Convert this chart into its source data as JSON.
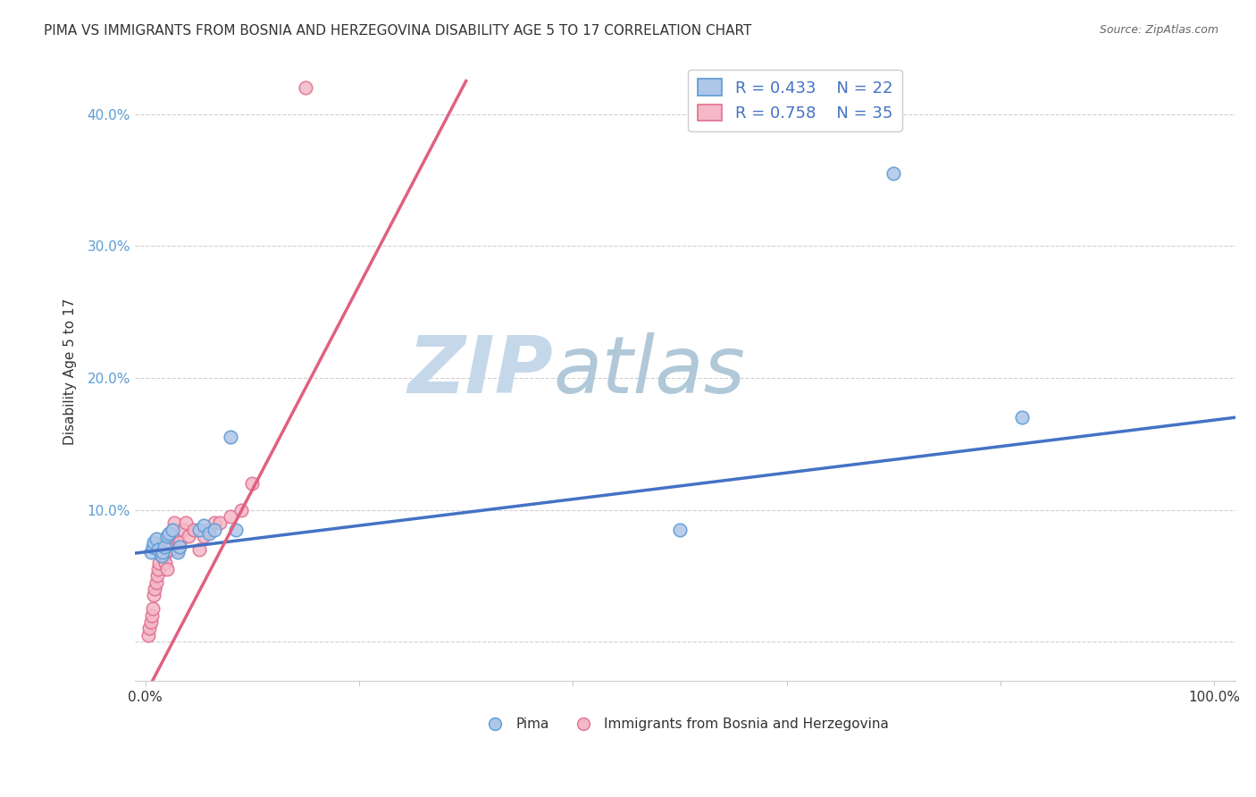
{
  "title": "PIMA VS IMMIGRANTS FROM BOSNIA AND HERZEGOVINA DISABILITY AGE 5 TO 17 CORRELATION CHART",
  "source": "Source: ZipAtlas.com",
  "ylabel": "Disability Age 5 to 17",
  "xlabel": "",
  "xlim": [
    -0.01,
    1.02
  ],
  "ylim": [
    -0.03,
    0.44
  ],
  "xticks": [
    0.0,
    0.2,
    0.4,
    0.6,
    0.8,
    1.0
  ],
  "xtick_labels": [
    "0.0%",
    "",
    "",
    "",
    "",
    "100.0%"
  ],
  "yticks": [
    0.0,
    0.1,
    0.2,
    0.3,
    0.4
  ],
  "ytick_labels": [
    "",
    "10.0%",
    "20.0%",
    "30.0%",
    "40.0%"
  ],
  "pima_R": 0.433,
  "pima_N": 22,
  "bosnia_R": 0.758,
  "bosnia_N": 35,
  "pima_color": "#aec6e8",
  "pima_edge_color": "#5b9bd5",
  "bosnia_color": "#f4b8c8",
  "bosnia_edge_color": "#e07090",
  "pima_line_color": "#4472c4",
  "bosnia_line_color": "#e06080",
  "pima_line_intercept": 0.068,
  "pima_line_slope": 0.1,
  "bosnia_line_intercept": -0.04,
  "bosnia_line_slope": 1.55,
  "watermark_zip": "ZIP",
  "watermark_atlas": "atlas",
  "watermark_color_zip": "#c5d8ea",
  "watermark_color_atlas": "#b0c8d8",
  "legend_text_color": "#4472c4",
  "pima_x": [
    0.005,
    0.007,
    0.008,
    0.01,
    0.012,
    0.015,
    0.016,
    0.018,
    0.02,
    0.022,
    0.025,
    0.03,
    0.032,
    0.05,
    0.055,
    0.06,
    0.065,
    0.08,
    0.085,
    0.5,
    0.7,
    0.82
  ],
  "pima_y": [
    0.068,
    0.072,
    0.075,
    0.078,
    0.07,
    0.065,
    0.068,
    0.072,
    0.08,
    0.082,
    0.085,
    0.068,
    0.072,
    0.085,
    0.088,
    0.082,
    0.085,
    0.155,
    0.085,
    0.085,
    0.355,
    0.17
  ],
  "bosnia_x": [
    0.003,
    0.004,
    0.005,
    0.006,
    0.007,
    0.008,
    0.009,
    0.01,
    0.011,
    0.012,
    0.013,
    0.015,
    0.016,
    0.017,
    0.018,
    0.019,
    0.02,
    0.022,
    0.025,
    0.027,
    0.03,
    0.032,
    0.035,
    0.038,
    0.04,
    0.045,
    0.05,
    0.055,
    0.06,
    0.065,
    0.07,
    0.08,
    0.09,
    0.1,
    0.15
  ],
  "bosnia_y": [
    0.005,
    0.01,
    0.015,
    0.02,
    0.025,
    0.035,
    0.04,
    0.045,
    0.05,
    0.055,
    0.06,
    0.065,
    0.07,
    0.075,
    0.065,
    0.06,
    0.055,
    0.07,
    0.08,
    0.09,
    0.07,
    0.075,
    0.085,
    0.09,
    0.08,
    0.085,
    0.07,
    0.08,
    0.085,
    0.09,
    0.09,
    0.095,
    0.1,
    0.12,
    0.42
  ],
  "marker_size": 110,
  "grid_color": "#d0d0d0",
  "bg_color": "#ffffff",
  "plot_bg_color": "#ffffff",
  "title_fontsize": 11,
  "axis_label_fontsize": 11,
  "tick_fontsize": 11,
  "legend_fontsize": 13
}
